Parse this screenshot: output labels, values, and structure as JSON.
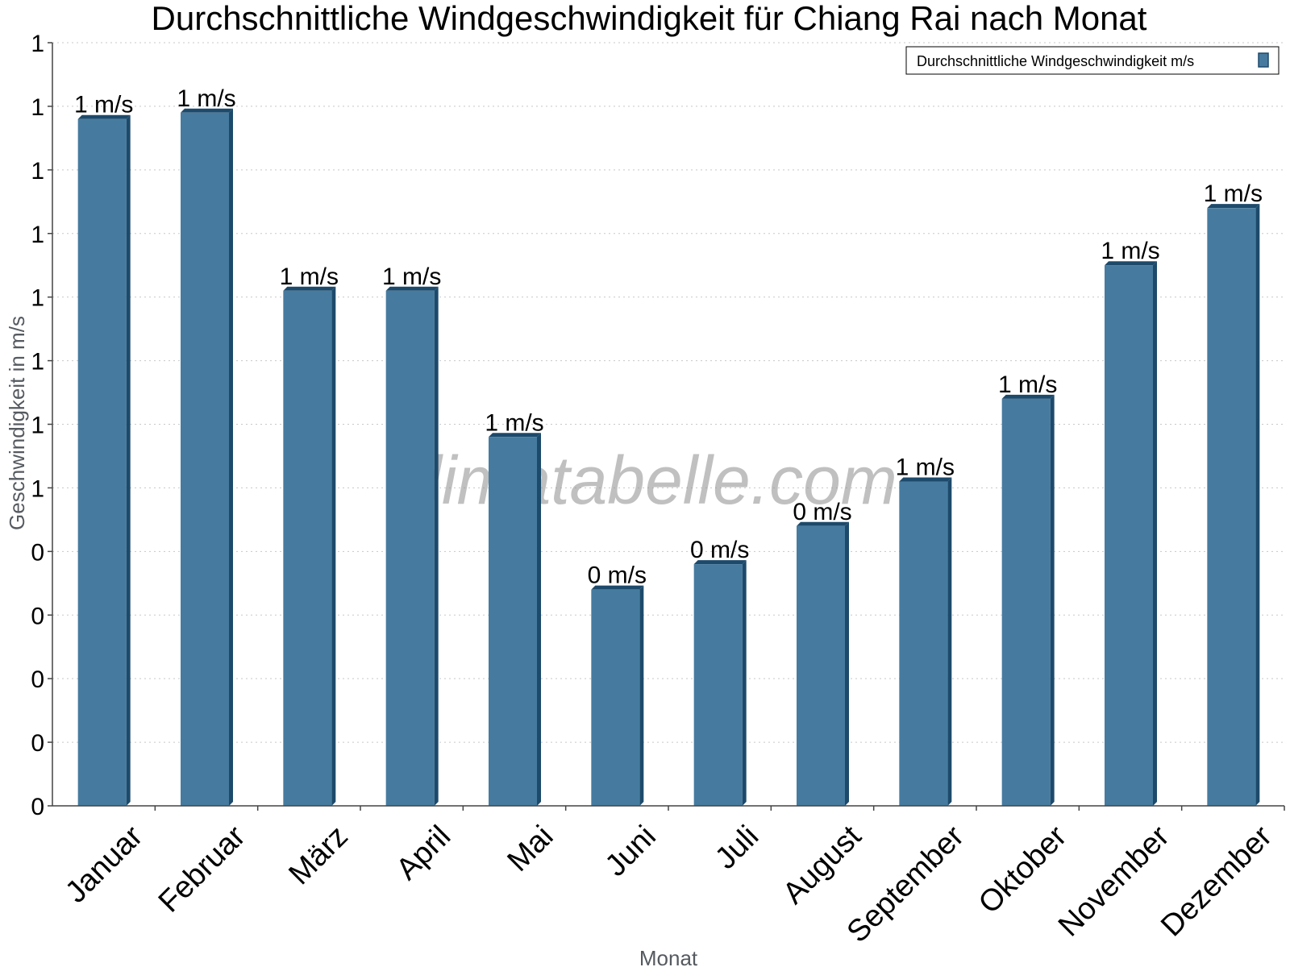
{
  "chart_data": {
    "type": "bar",
    "title": "Durchschnittliche Windgeschwindigkeit für Chiang Rai nach Monat",
    "xlabel": "Monat",
    "ylabel": "Geschwindigkeit in m/s",
    "categories": [
      "Januar",
      "Februar",
      "März",
      "April",
      "Mai",
      "Juni",
      "Juli",
      "August",
      "September",
      "Oktober",
      "November",
      "Dezember"
    ],
    "series": [
      {
        "name": "Durchschnittliche Windgeschwindigkeit m/s",
        "values": [
          1.08,
          1.09,
          0.81,
          0.81,
          0.58,
          0.34,
          0.38,
          0.44,
          0.51,
          0.64,
          0.85,
          0.94
        ],
        "labels": [
          "1 m/s",
          "1 m/s",
          "1 m/s",
          "1 m/s",
          "1 m/s",
          "0 m/s",
          "0 m/s",
          "0 m/s",
          "1 m/s",
          "1 m/s",
          "1 m/s",
          "1 m/s"
        ],
        "color": "#467b9f",
        "side_color": "#1d4a6b"
      }
    ],
    "ylim": [
      0,
      1.2
    ],
    "yticks": [
      {
        "value": 0,
        "label": "0"
      },
      {
        "value": 0.1,
        "label": "0"
      },
      {
        "value": 0.2,
        "label": "0"
      },
      {
        "value": 0.3,
        "label": "0"
      },
      {
        "value": 0.4,
        "label": "0"
      },
      {
        "value": 0.5,
        "label": "1"
      },
      {
        "value": 0.6,
        "label": "1"
      },
      {
        "value": 0.7,
        "label": "1"
      },
      {
        "value": 0.8,
        "label": "1"
      },
      {
        "value": 0.9,
        "label": "1"
      },
      {
        "value": 1.0,
        "label": "1"
      },
      {
        "value": 1.1,
        "label": "1"
      },
      {
        "value": 1.2,
        "label": "1"
      }
    ],
    "grid": true,
    "legend_position": "top-right"
  },
  "watermark": "klimatabelle.com"
}
